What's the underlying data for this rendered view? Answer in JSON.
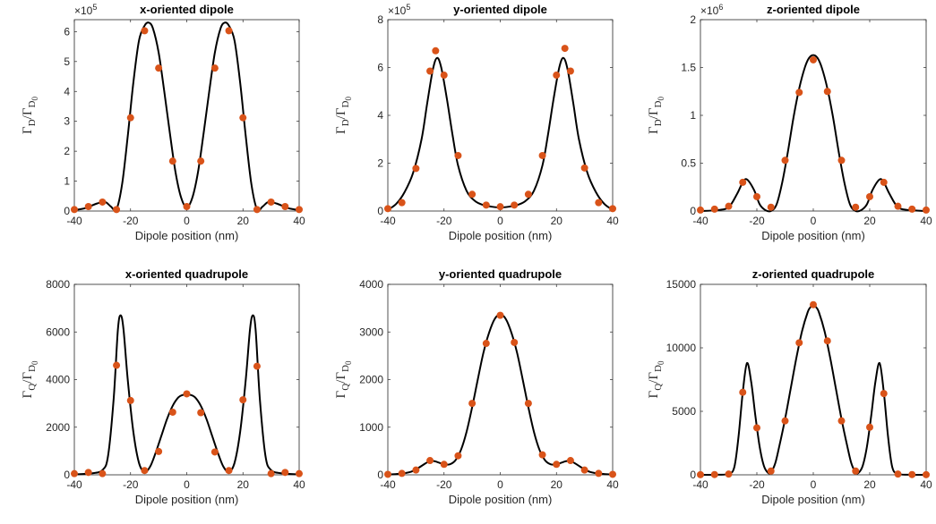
{
  "figure": {
    "ylabel_dipole": {
      "sym": "Γ",
      "sub": "D",
      "slash": "/Γ",
      "sub2": "D",
      "subsub": "0"
    },
    "ylabel_quadrupole": {
      "sym": "Γ",
      "sub": "Q",
      "slash": "/Γ",
      "sub2": "D",
      "subsub": "0"
    },
    "colors": {
      "curve": "#000000",
      "markers": "#D95319",
      "axes": "#262626"
    }
  },
  "chart_data": [
    {
      "type": "line",
      "title": "x-oriented dipole",
      "xlabel": "Dipole position (nm)",
      "ylabel": "ΓD/ΓD0",
      "xlim": [
        -40,
        40
      ],
      "ylim": [
        0,
        6.4
      ],
      "xticks": [
        -40,
        -20,
        0,
        20,
        40
      ],
      "yticks": [
        0,
        1,
        2,
        3,
        4,
        5,
        6
      ],
      "scale_exponent": "×10",
      "scale_power": "5",
      "series": [
        {
          "values": {
            "x": [
              -40,
              -35,
              -30,
              -25,
              -20,
              -15,
              -10,
              -5,
              0,
              5,
              10,
              15,
              20,
              25,
              30,
              35,
              40
            ],
            "y": [
              0.05,
              0.15,
              0.3,
              0.05,
              3.12,
              6.03,
              4.78,
              1.67,
              0.15,
              1.67,
              4.78,
              6.03,
              3.12,
              0.05,
              0.3,
              0.15,
              0.05
            ]
          }
        },
        {
          "values": {
            "x": [
              -40,
              -36,
              -32,
              -29,
              -27,
              -25,
              -23,
              -21,
              -19,
              -17,
              -15,
              -13.5,
              -12,
              -10,
              -8,
              -6,
              -4,
              -2,
              0,
              2,
              4,
              6,
              8,
              10,
              12,
              13.5,
              15,
              17,
              19,
              21,
              23,
              25,
              27,
              29,
              32,
              36,
              40
            ],
            "y": [
              0.03,
              0.1,
              0.25,
              0.3,
              0.15,
              0.06,
              0.9,
              2.5,
              4.3,
              5.7,
              6.2,
              6.3,
              6.1,
              5.3,
              4.0,
              2.6,
              1.3,
              0.45,
              0.12,
              0.45,
              1.3,
              2.6,
              4.0,
              5.3,
              6.1,
              6.3,
              6.2,
              5.7,
              4.3,
              2.5,
              0.9,
              0.06,
              0.15,
              0.3,
              0.25,
              0.1,
              0.03
            ]
          }
        }
      ]
    },
    {
      "type": "line",
      "title": "y-oriented dipole",
      "xlabel": "Dipole position (nm)",
      "ylabel": "ΓD/ΓD0",
      "xlim": [
        -40,
        40
      ],
      "ylim": [
        0,
        8
      ],
      "xticks": [
        -40,
        -20,
        0,
        20,
        40
      ],
      "yticks": [
        0,
        2,
        4,
        6,
        8
      ],
      "scale_exponent": "×10",
      "scale_power": "5",
      "series": [
        {
          "values": {
            "x": [
              -40,
              -35,
              -30,
              -25,
              -23,
              -20,
              -15,
              -10,
              -5,
              0,
              5,
              10,
              15,
              20,
              23,
              25,
              30,
              35,
              40
            ],
            "y": [
              0.1,
              0.35,
              1.78,
              5.85,
              6.7,
              5.68,
              2.32,
              0.7,
              0.25,
              0.18,
              0.25,
              0.7,
              2.32,
              5.68,
              6.8,
              5.85,
              1.8,
              0.35,
              0.1
            ]
          }
        },
        {
          "values": {
            "x": [
              -40,
              -37,
              -34,
              -31,
              -28,
              -26,
              -24,
              -22.5,
              -21,
              -19,
              -17,
              -15,
              -12,
              -9,
              -6,
              -3,
              0,
              3,
              6,
              9,
              12,
              15,
              17,
              19,
              21,
              22.5,
              24,
              26,
              28,
              31,
              34,
              37,
              40
            ],
            "y": [
              0.05,
              0.3,
              0.8,
              1.6,
              3.0,
              4.5,
              5.9,
              6.4,
              6.0,
              4.7,
              3.2,
              1.9,
              0.85,
              0.42,
              0.25,
              0.18,
              0.15,
              0.18,
              0.25,
              0.42,
              0.85,
              1.9,
              3.2,
              4.7,
              6.0,
              6.4,
              5.9,
              4.5,
              3.0,
              1.6,
              0.8,
              0.3,
              0.05
            ]
          }
        }
      ]
    },
    {
      "type": "line",
      "title": "z-oriented dipole",
      "xlabel": "Dipole position (nm)",
      "ylabel": "ΓD/ΓD0",
      "xlim": [
        -40,
        40
      ],
      "ylim": [
        0,
        2
      ],
      "xticks": [
        -40,
        -20,
        0,
        20,
        40
      ],
      "yticks": [
        0,
        0.5,
        1,
        1.5,
        2
      ],
      "scale_exponent": "×10",
      "scale_power": "6",
      "series": [
        {
          "values": {
            "x": [
              -40,
              -35,
              -30,
              -25,
              -20,
              -15,
              -10,
              -5,
              0,
              5,
              10,
              15,
              20,
              25,
              30,
              35,
              40
            ],
            "y": [
              0.01,
              0.02,
              0.05,
              0.3,
              0.15,
              0.04,
              0.53,
              1.24,
              1.58,
              1.25,
              0.53,
              0.04,
              0.15,
              0.3,
              0.05,
              0.02,
              0.01
            ]
          }
        },
        {
          "values": {
            "x": [
              -40,
              -34,
              -30,
              -27,
              -25,
              -23.5,
              -21,
              -19,
              -17,
              -15,
              -13,
              -11,
              -9,
              -7,
              -5,
              -3,
              -1.5,
              0,
              1.5,
              3,
              5,
              7,
              9,
              11,
              13,
              15,
              17,
              19,
              21,
              23.5,
              25,
              27,
              30,
              34,
              40
            ],
            "y": [
              0.0,
              0.01,
              0.04,
              0.18,
              0.3,
              0.33,
              0.22,
              0.07,
              0.01,
              0.0,
              0.07,
              0.3,
              0.62,
              0.98,
              1.28,
              1.5,
              1.6,
              1.63,
              1.6,
              1.5,
              1.28,
              0.98,
              0.62,
              0.3,
              0.07,
              0.0,
              0.01,
              0.07,
              0.22,
              0.33,
              0.3,
              0.18,
              0.04,
              0.01,
              0.0
            ]
          }
        }
      ]
    },
    {
      "type": "line",
      "title": "x-oriented quadrupole",
      "xlabel": "Dipole position (nm)",
      "ylabel": "ΓQ/ΓD0",
      "xlim": [
        -40,
        40
      ],
      "ylim": [
        0,
        8000
      ],
      "xticks": [
        -40,
        -20,
        0,
        20,
        40
      ],
      "yticks": [
        0,
        2000,
        4000,
        6000,
        8000
      ],
      "scale_exponent": "",
      "scale_power": "",
      "series": [
        {
          "values": {
            "x": [
              -40,
              -35,
              -30,
              -25,
              -20,
              -15,
              -10,
              -5,
              0,
              5,
              10,
              15,
              20,
              25,
              30,
              35,
              40
            ],
            "y": [
              50,
              100,
              50,
              4600,
              3120,
              180,
              980,
              2630,
              3400,
              2610,
              960,
              180,
              3150,
              4560,
              50,
              100,
              50
            ]
          }
        },
        {
          "values": {
            "x": [
              -40,
              -34,
              -30,
              -28,
              -26,
              -24.5,
              -23.5,
              -22.5,
              -21,
              -19,
              -17,
              -15,
              -13,
              -11,
              -9,
              -7,
              -5,
              -3,
              -1.5,
              0,
              1.5,
              3,
              5,
              7,
              9,
              11,
              13,
              15,
              17,
              19,
              21,
              22.5,
              23.5,
              24.5,
              26,
              28,
              30,
              34,
              40
            ],
            "y": [
              20,
              60,
              200,
              800,
              3200,
              6100,
              6700,
              6100,
              4000,
              1800,
              500,
              120,
              350,
              950,
              1650,
              2350,
              2900,
              3250,
              3350,
              3380,
              3350,
              3250,
              2900,
              2350,
              1650,
              950,
              350,
              120,
              500,
              1800,
              4000,
              6100,
              6700,
              6100,
              3200,
              800,
              200,
              60,
              20
            ]
          }
        }
      ]
    },
    {
      "type": "line",
      "title": "y-oriented quadrupole",
      "xlabel": "Dipole position (nm)",
      "ylabel": "ΓQ/ΓD0",
      "xlim": [
        -40,
        40
      ],
      "ylim": [
        0,
        4000
      ],
      "xticks": [
        -40,
        -20,
        0,
        20,
        40
      ],
      "yticks": [
        0,
        1000,
        2000,
        3000,
        4000
      ],
      "scale_exponent": "",
      "scale_power": "",
      "series": [
        {
          "values": {
            "x": [
              -40,
              -35,
              -30,
              -25,
              -20,
              -15,
              -10,
              -5,
              0,
              5,
              10,
              15,
              20,
              25,
              30,
              35,
              40
            ],
            "y": [
              10,
              30,
              100,
              300,
              220,
              400,
              1500,
              2760,
              3350,
              2780,
              1500,
              420,
              220,
              300,
              100,
              30,
              10
            ]
          }
        },
        {
          "values": {
            "x": [
              -40,
              -36,
              -32,
              -29,
              -26,
              -24,
              -22,
              -20,
              -18,
              -16,
              -14,
              -12,
              -10,
              -8,
              -6,
              -4,
              -2,
              0,
              2,
              4,
              6,
              8,
              10,
              12,
              14,
              16,
              18,
              20,
              22,
              24,
              26,
              29,
              32,
              36,
              40
            ],
            "y": [
              5,
              20,
              60,
              150,
              260,
              290,
              260,
              220,
              220,
              300,
              520,
              900,
              1420,
              2000,
              2560,
              2980,
              3270,
              3370,
              3270,
              2980,
              2560,
              2000,
              1420,
              900,
              520,
              300,
              220,
              220,
              260,
              290,
              260,
              150,
              60,
              20,
              5
            ]
          }
        }
      ]
    },
    {
      "type": "line",
      "title": "z-oriented quadrupole",
      "xlabel": "Dipole position (nm)",
      "ylabel": "ΓQ/ΓD0",
      "xlim": [
        -40,
        40
      ],
      "ylim": [
        0,
        15000
      ],
      "xticks": [
        -40,
        -20,
        0,
        20,
        40
      ],
      "yticks": [
        0,
        5000,
        10000,
        15000
      ],
      "scale_exponent": "",
      "scale_power": "",
      "series": [
        {
          "values": {
            "x": [
              -40,
              -35,
              -30,
              -25,
              -20,
              -15,
              -10,
              -5,
              0,
              5,
              10,
              15,
              20,
              25,
              30,
              35,
              40
            ],
            "y": [
              10,
              20,
              60,
              6500,
              3700,
              300,
              4250,
              10400,
              13400,
              10550,
              4250,
              300,
              3750,
              6400,
              60,
              20,
              10
            ]
          }
        },
        {
          "values": {
            "x": [
              -40,
              -34,
              -30,
              -28,
              -26.5,
              -25,
              -23.5,
              -22,
              -20.5,
              -19,
              -17.5,
              -16,
              -15,
              -13.5,
              -12,
              -10,
              -8,
              -6,
              -4,
              -2,
              -1,
              0,
              1,
              2,
              4,
              6,
              8,
              10,
              12,
              13.5,
              15,
              16,
              17.5,
              19,
              20.5,
              22,
              23.5,
              25,
              26.5,
              28,
              30,
              34,
              40
            ],
            "y": [
              0,
              10,
              80,
              600,
              3000,
              6500,
              8800,
              7300,
              4600,
              2200,
              700,
              150,
              200,
              900,
              2300,
              4400,
              6800,
              9200,
              11300,
              12800,
              13200,
              13400,
              13200,
              12800,
              11300,
              9200,
              6800,
              4400,
              2300,
              900,
              200,
              150,
              700,
              2200,
              4600,
              7300,
              8800,
              6500,
              3000,
              600,
              80,
              10,
              0
            ]
          }
        }
      ]
    }
  ]
}
